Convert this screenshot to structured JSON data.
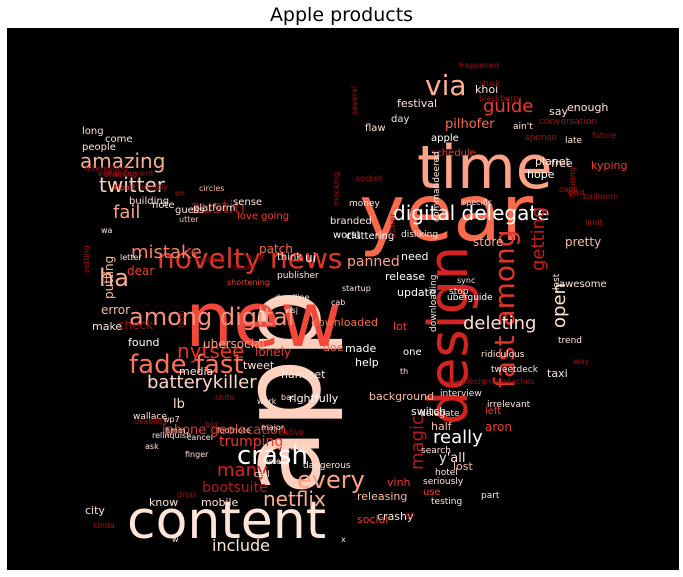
{
  "title": "Apple products",
  "words": [
    {
      "t": "app",
      "c": "#ffd0bd"
    },
    {
      "t": "new",
      "c": "#f2483a"
    },
    {
      "t": "year",
      "c": "#fb6a4a"
    },
    {
      "t": "time",
      "c": "#fca286"
    },
    {
      "t": "content",
      "c": "#ffe4d8"
    },
    {
      "t": "design",
      "c": "#d42420"
    },
    {
      "t": "novelty news",
      "c": "#e53528"
    },
    {
      "t": "among digital",
      "c": "#f9907a"
    },
    {
      "t": "fade fast",
      "c": "#fb7457"
    },
    {
      "t": "digital delegate",
      "c": "#ffffff"
    },
    {
      "t": "crash",
      "c": "#ffffff"
    },
    {
      "t": "every",
      "c": "#fca286"
    },
    {
      "t": "fast among",
      "c": "#e0342b"
    },
    {
      "t": "via",
      "c": "#fcae91"
    },
    {
      "t": "amazing",
      "c": "#fcae91"
    },
    {
      "t": "twitter",
      "c": "#ffd0bd"
    },
    {
      "t": "austin",
      "c": "#9a1217"
    },
    {
      "t": "mistake",
      "c": "#fb8164"
    },
    {
      "t": "fail",
      "c": "#fca286"
    },
    {
      "t": "ha",
      "c": "#fcae91"
    },
    {
      "t": "nytsee",
      "c": "#e53528"
    },
    {
      "t": "batterykiller",
      "c": "#ffd6c7"
    },
    {
      "t": "iphone geolocation",
      "c": "#e03a2e"
    },
    {
      "t": "netflix",
      "c": "#fcae91"
    },
    {
      "t": "include",
      "c": "#ffe4d8"
    },
    {
      "t": "many",
      "c": "#d6251f"
    },
    {
      "t": "guide",
      "c": "#ef3b2c"
    },
    {
      "t": "getting",
      "c": "#c61d1f"
    },
    {
      "t": "open",
      "c": "#fee0d2"
    },
    {
      "t": "deleting",
      "c": "#fee0d2"
    },
    {
      "t": "really",
      "c": "#ffffff"
    },
    {
      "t": "magic",
      "c": "#b01a1d"
    },
    {
      "t": "trumping",
      "c": "#ef3b2c"
    },
    {
      "t": "bootsuite",
      "c": "#b01a1d"
    },
    {
      "t": "y'all",
      "c": "#fee0d2"
    },
    {
      "t": "aron",
      "c": "#ef3b2c"
    },
    {
      "t": "panned",
      "c": "#fca286"
    },
    {
      "t": "store",
      "c": "#fcae91"
    },
    {
      "t": "pretty",
      "c": "#fcbba1"
    },
    {
      "t": "ui",
      "c": "#ffffff"
    },
    {
      "t": "think",
      "c": "#fee0d2"
    },
    {
      "t": "lb",
      "c": "#fee0d2"
    },
    {
      "t": "patch",
      "c": "#fb6a4a"
    },
    {
      "t": "dear",
      "c": "#ef3b2c"
    },
    {
      "t": "check",
      "c": "#9a1217"
    },
    {
      "t": "error",
      "c": "#fcbba1"
    },
    {
      "t": "putting",
      "c": "#fcbba1"
    },
    {
      "t": "make",
      "c": "#fee0d2"
    },
    {
      "t": "found",
      "c": "#ffffff"
    },
    {
      "t": "lonely",
      "c": "#ef3b2c"
    },
    {
      "t": "ubersocial",
      "c": "#fca286"
    },
    {
      "t": "media",
      "c": "#ffe4d8"
    },
    {
      "t": "tweet",
      "c": "#ffe4d8"
    },
    {
      "t": "handset",
      "c": "#ffe4d8"
    },
    {
      "t": "rightfully",
      "c": "#ffffff"
    },
    {
      "t": "background",
      "c": "#fcbba1"
    },
    {
      "t": "switch",
      "c": "#ffffff"
    },
    {
      "t": "half",
      "c": "#fcbba1"
    },
    {
      "t": "releasing",
      "c": "#fcbba1"
    },
    {
      "t": "crashy",
      "c": "#ffe4d8"
    },
    {
      "t": "social",
      "c": "#ef3b2c"
    },
    {
      "t": "city",
      "c": "#ffe4d8"
    },
    {
      "t": "know",
      "c": "#ffe4d8"
    },
    {
      "t": "mobile",
      "c": "#ffe4d8"
    },
    {
      "t": "vinh",
      "c": "#ef3b2c"
    },
    {
      "t": "lost",
      "c": "#fcbba1"
    },
    {
      "t": "use",
      "c": "#ef3b2c"
    },
    {
      "t": "left",
      "c": "#ef3b2c"
    },
    {
      "t": "taxi",
      "c": "#ffe4d8"
    },
    {
      "t": "awesome",
      "c": "#fee0d2"
    },
    {
      "t": "release",
      "c": "#ffffff"
    },
    {
      "t": "need",
      "c": "#ffffff"
    },
    {
      "t": "update",
      "c": "#ffffff"
    },
    {
      "t": "lot",
      "c": "#ef3b2c"
    },
    {
      "t": "downloaded",
      "c": "#fb6a4a"
    },
    {
      "t": "made",
      "c": "#ffffff"
    },
    {
      "t": "doe",
      "c": "#fb6a4a"
    },
    {
      "t": "help",
      "c": "#ffffff"
    },
    {
      "t": "one",
      "c": "#ffffff"
    },
    {
      "t": "festival",
      "c": "#fee0d2"
    },
    {
      "t": "khoi",
      "c": "#ffe4d8"
    },
    {
      "t": "say",
      "c": "#ffe4d8"
    },
    {
      "t": "enough",
      "c": "#ffe4d8"
    },
    {
      "t": "apple",
      "c": "#ffffff"
    },
    {
      "t": "pilhofer",
      "c": "#fb6a4a"
    },
    {
      "t": "schedule",
      "c": "#ef3b2c"
    },
    {
      "t": "day",
      "c": "#fee0d2"
    },
    {
      "t": "flaw",
      "c": "#fee0d2"
    },
    {
      "t": "hope",
      "c": "#ffffff"
    },
    {
      "t": "free",
      "c": "#fee0d2"
    },
    {
      "t": "planet",
      "c": "#fee0d2"
    },
    {
      "t": "kyping",
      "c": "#ef3b2c"
    },
    {
      "t": "long",
      "c": "#fee0d2"
    },
    {
      "t": "come",
      "c": "#fee0d2"
    },
    {
      "t": "people",
      "c": "#fee0d2"
    },
    {
      "t": "note",
      "c": "#fee0d2"
    },
    {
      "t": "platform",
      "c": "#ffe4d8"
    },
    {
      "t": "guess",
      "c": "#ffe4d8"
    },
    {
      "t": "building",
      "c": "#fee0d2"
    },
    {
      "t": "sense",
      "c": "#ffe4d8"
    },
    {
      "t": "love going",
      "c": "#ef3b2c"
    },
    {
      "t": "worst",
      "c": "#ffffff"
    },
    {
      "t": "cluttering",
      "c": "#ffffff"
    },
    {
      "t": "branded",
      "c": "#ffe4d8"
    },
    {
      "t": "money",
      "c": "#ffe4d8"
    },
    {
      "t": "disliking",
      "c": "#ffe4d8"
    },
    {
      "t": "commandeered",
      "c": "#ffe4d8"
    },
    {
      "t": "specific",
      "c": "#ffe4d8"
    },
    {
      "t": "stop",
      "c": "#ffe4d8"
    },
    {
      "t": "uberguide",
      "c": "#ffffff"
    },
    {
      "t": "downloading",
      "c": "#ffe4d8"
    },
    {
      "t": "ridiculous",
      "c": "#ffe4d8"
    },
    {
      "t": "tweetdeck",
      "c": "#ffe4d8"
    },
    {
      "t": "irrelevant",
      "c": "#ffe4d8"
    },
    {
      "t": "interview",
      "c": "#ffe4d8"
    },
    {
      "t": "delegate",
      "c": "#ffe4d8"
    },
    {
      "t": "search",
      "c": "#ffe4d8"
    },
    {
      "t": "hotel",
      "c": "#ffe4d8"
    },
    {
      "t": "seriously",
      "c": "#ffe4d8"
    },
    {
      "t": "testing",
      "c": "#ffe4d8"
    },
    {
      "t": "part",
      "c": "#ffe4d8"
    },
    {
      "t": "foster",
      "c": "#ffe4d8"
    },
    {
      "t": "dangerous",
      "c": "#ffe4d8"
    },
    {
      "t": "call",
      "c": "#ffe4d8"
    },
    {
      "t": "ask",
      "c": "#ffe4d8"
    },
    {
      "t": "wallace",
      "c": "#ffe4d8"
    },
    {
      "t": "hmm",
      "c": "#ffe4d8"
    },
    {
      "t": "finger",
      "c": "#ffe4d8"
    },
    {
      "t": "relinquish",
      "c": "#ffe4d8"
    },
    {
      "t": "cancel",
      "c": "#ffe4d8"
    },
    {
      "t": "footnote",
      "c": "#fcbba1"
    },
    {
      "t": "constant",
      "c": "#fee0d2"
    },
    {
      "t": "major",
      "c": "#fee0d2"
    },
    {
      "t": "bad",
      "c": "#fee0d2"
    },
    {
      "t": "ain't",
      "c": "#ffe4d8"
    },
    {
      "t": "conversation",
      "c": "#a50f15"
    },
    {
      "t": "sponso",
      "c": "#a50f15"
    },
    {
      "t": "late",
      "c": "#ffe4d8"
    },
    {
      "t": "trend",
      "c": "#ffe4d8"
    },
    {
      "t": "last",
      "c": "#ffe4d8"
    },
    {
      "t": "sync",
      "c": "#ffe4d8"
    },
    {
      "t": "deadline",
      "c": "#ffe4d8"
    },
    {
      "t": "wsj",
      "c": "#ffe4d8"
    },
    {
      "t": "cab",
      "c": "#ffe4d8"
    },
    {
      "t": "startup",
      "c": "#ffe4d8"
    },
    {
      "t": "publisher",
      "c": "#ffe4d8"
    },
    {
      "t": "letter",
      "c": "#ffe4d8"
    },
    {
      "t": "built",
      "c": "#a50f15"
    },
    {
      "t": "shortening",
      "c": "#ef3b2c"
    },
    {
      "t": "loading",
      "c": "#a50f15"
    },
    {
      "t": "fat",
      "c": "#a50f15"
    },
    {
      "t": "oh",
      "c": "#a50f15"
    },
    {
      "t": "circles",
      "c": "#fcbba1"
    },
    {
      "t": "utter",
      "c": "#fcbba1"
    },
    {
      "t": "wa",
      "c": "#ffe4d8"
    },
    {
      "t": "xipad",
      "c": "#ef3b2c"
    },
    {
      "t": "mostly",
      "c": "#a50f15"
    },
    {
      "t": "enhancement",
      "c": "#a50f15"
    },
    {
      "t": "interesting",
      "c": "#a50f15"
    },
    {
      "t": "draining",
      "c": "#a50f15"
    },
    {
      "t": "happened",
      "c": "#a50f15"
    },
    {
      "t": "stuck",
      "c": "#a50f15"
    },
    {
      "t": "blackberry",
      "c": "#a50f15"
    },
    {
      "t": "socket",
      "c": "#a50f15"
    },
    {
      "t": "mocking",
      "c": "#a50f15"
    },
    {
      "t": "power",
      "c": "#a50f15"
    },
    {
      "t": "cope",
      "c": "#a50f15"
    },
    {
      "t": "ipad",
      "c": "#a50f15"
    },
    {
      "t": "ballroom",
      "c": "#a50f15"
    },
    {
      "t": "future",
      "c": "#a50f15"
    },
    {
      "t": "limit",
      "c": "#a50f15"
    },
    {
      "t": "causing",
      "c": "#a50f15"
    },
    {
      "t": "way",
      "c": "#a50f15"
    },
    {
      "t": "several",
      "c": "#a50f15"
    },
    {
      "t": "setting",
      "c": "#a50f15"
    },
    {
      "t": "tech",
      "c": "#a50f15"
    },
    {
      "t": "david",
      "c": "#a50f15"
    },
    {
      "t": "work",
      "c": "#ffe4d8"
    },
    {
      "t": "th",
      "c": "#ffe4d8"
    },
    {
      "t": "ipaddesignheadaches",
      "c": "#a50f15"
    },
    {
      "t": "wp7",
      "c": "#ffe4d8"
    },
    {
      "t": "usability",
      "c": "#a50f15"
    },
    {
      "t": "native",
      "c": "#a50f15"
    },
    {
      "t": "shite",
      "c": "#a50f15"
    },
    {
      "t": "big",
      "c": "#a50f15"
    },
    {
      "t": "drop",
      "c": "#a50f15"
    },
    {
      "t": "kinda",
      "c": "#a50f15"
    },
    {
      "t": "w",
      "c": "#ffe4d8"
    },
    {
      "t": "x",
      "c": "#ffe4d8"
    },
    {
      "t": "go",
      "c": "#a50f15"
    }
  ]
}
